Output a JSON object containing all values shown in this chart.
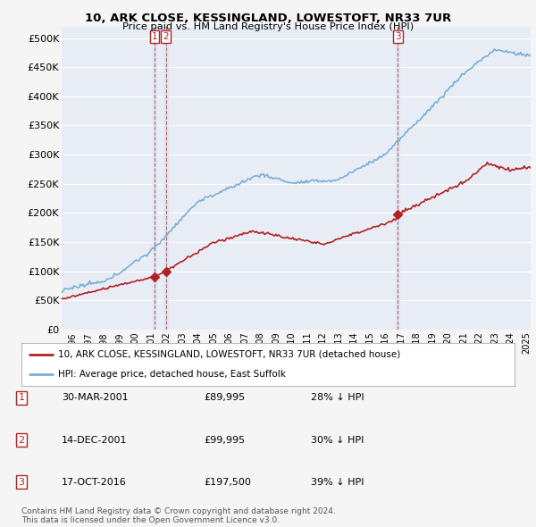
{
  "title_line1": "10, ARK CLOSE, KESSINGLAND, LOWESTOFT, NR33 7UR",
  "title_line2": "Price paid vs. HM Land Registry's House Price Index (HPI)",
  "ylabel_ticks": [
    "£0",
    "£50K",
    "£100K",
    "£150K",
    "£200K",
    "£250K",
    "£300K",
    "£350K",
    "£400K",
    "£450K",
    "£500K"
  ],
  "ytick_values": [
    0,
    50000,
    100000,
    150000,
    200000,
    250000,
    300000,
    350000,
    400000,
    450000,
    500000
  ],
  "ylim": [
    0,
    520000
  ],
  "xlim_start": 1995.3,
  "xlim_end": 2025.3,
  "hpi_color": "#7bafd4",
  "price_color": "#b22222",
  "bg_color": "#f5f5f5",
  "plot_bg": "#e8edf5",
  "grid_color": "#ffffff",
  "vband_color": "#dde8f5",
  "transaction_dates": [
    2001.24,
    2001.96,
    2016.8
  ],
  "transaction_prices": [
    89995,
    99995,
    197500
  ],
  "transaction_labels": [
    "1",
    "2",
    "3"
  ],
  "legend_line1": "10, ARK CLOSE, KESSINGLAND, LOWESTOFT, NR33 7UR (detached house)",
  "legend_line2": "HPI: Average price, detached house, East Suffolk",
  "table_rows": [
    {
      "num": "1",
      "date": "30-MAR-2001",
      "price": "£89,995",
      "pct": "28% ↓ HPI"
    },
    {
      "num": "2",
      "date": "14-DEC-2001",
      "price": "£99,995",
      "pct": "30% ↓ HPI"
    },
    {
      "num": "3",
      "date": "17-OCT-2016",
      "price": "£197,500",
      "pct": "39% ↓ HPI"
    }
  ],
  "footer": "Contains HM Land Registry data © Crown copyright and database right 2024.\nThis data is licensed under the Open Government Licence v3.0."
}
